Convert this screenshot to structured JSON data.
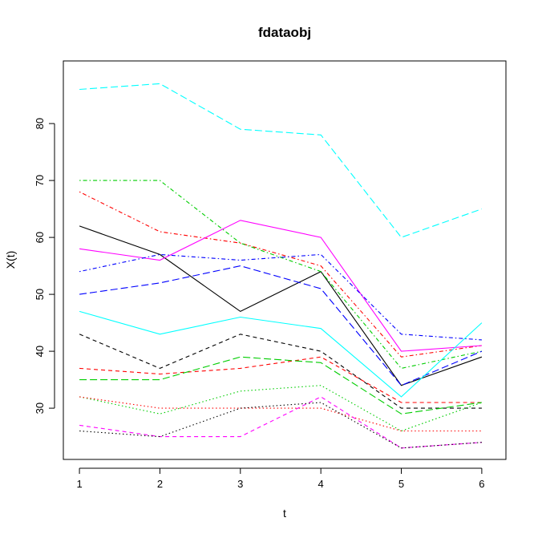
{
  "chart_data": {
    "type": "line",
    "title": "fdataobj",
    "xlabel": "t",
    "ylabel": "X(t)",
    "x": [
      1,
      2,
      3,
      4,
      5,
      6
    ],
    "xlim": [
      0.8,
      6.3
    ],
    "ylim": [
      21,
      91
    ],
    "x_ticks": [
      "1",
      "2",
      "3",
      "4",
      "5",
      "6"
    ],
    "y_ticks": [
      "30",
      "40",
      "50",
      "60",
      "70",
      "80"
    ],
    "grid": false,
    "legend": "none",
    "series": [
      {
        "values": [
          62,
          57,
          47,
          54,
          34,
          39
        ],
        "color": "#000000",
        "dash": "solid"
      },
      {
        "values": [
          68,
          61,
          59,
          55,
          39,
          41
        ],
        "color": "#ff0000",
        "dash": "dashdot"
      },
      {
        "values": [
          70,
          70,
          59,
          54,
          37,
          40
        ],
        "color": "#00cd00",
        "dash": "dashdot"
      },
      {
        "values": [
          50,
          52,
          55,
          51,
          34,
          40
        ],
        "color": "#0000ff",
        "dash": "longdash"
      },
      {
        "values": [
          86,
          87,
          79,
          78,
          60,
          65
        ],
        "color": "#00ffff",
        "dash": "longdash"
      },
      {
        "values": [
          58,
          56,
          63,
          60,
          40,
          41
        ],
        "color": "#ff00ff",
        "dash": "solid"
      },
      {
        "values": [
          54,
          57,
          56,
          57,
          43,
          42
        ],
        "color": "#0000ff",
        "dash": "dashdot"
      },
      {
        "values": [
          47,
          43,
          46,
          44,
          32,
          45
        ],
        "color": "#00ffff",
        "dash": "solid"
      },
      {
        "values": [
          43,
          37,
          43,
          40,
          30,
          30
        ],
        "color": "#000000",
        "dash": "dashed"
      },
      {
        "values": [
          37,
          36,
          37,
          39,
          31,
          31
        ],
        "color": "#ff0000",
        "dash": "dashed"
      },
      {
        "values": [
          35,
          35,
          39,
          38,
          29,
          31
        ],
        "color": "#00cd00",
        "dash": "longdash"
      },
      {
        "values": [
          32,
          29,
          33,
          34,
          26,
          31
        ],
        "color": "#00cd00",
        "dash": "dotted"
      },
      {
        "values": [
          32,
          30,
          30,
          30,
          26,
          26
        ],
        "color": "#ff0000",
        "dash": "dotted"
      },
      {
        "values": [
          27,
          25,
          25,
          32,
          23,
          24
        ],
        "color": "#ff00ff",
        "dash": "dashed"
      },
      {
        "values": [
          26,
          25,
          30,
          31,
          23,
          24
        ],
        "color": "#000000",
        "dash": "dotted"
      }
    ]
  }
}
